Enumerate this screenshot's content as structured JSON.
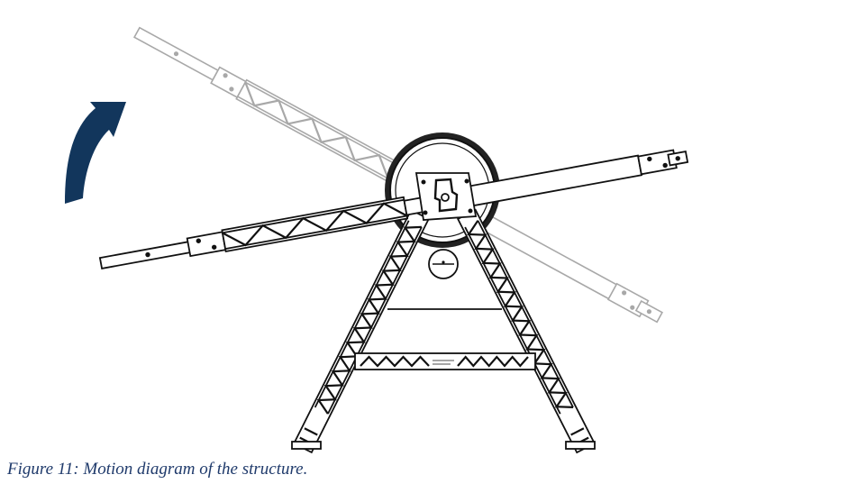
{
  "caption": "Figure 11: Motion diagram of the structure.",
  "colors": {
    "line": "#111111",
    "ghost": "#a8a8a8",
    "arrow": "#12365c",
    "caption": "#1f3a6b"
  },
  "icons": [
    "rotation-arrow-icon"
  ]
}
